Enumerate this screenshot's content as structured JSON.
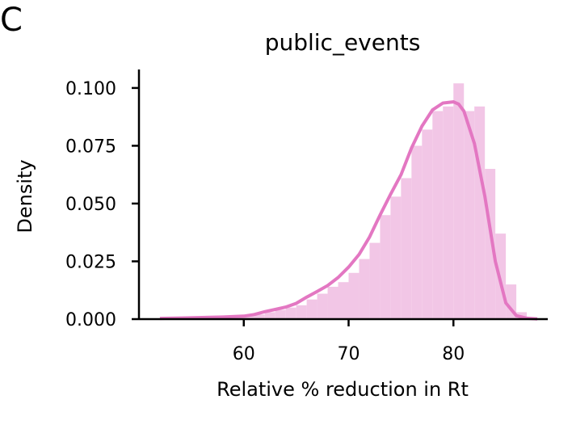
{
  "panel_label": "C",
  "chart_data": {
    "type": "histogram",
    "title": "public_events",
    "xlabel": "Relative % reduction in Rt",
    "ylabel": "Density",
    "xlim": [
      50,
      89
    ],
    "ylim": [
      0,
      0.108
    ],
    "xticks": [
      60,
      70,
      80
    ],
    "xtick_labels": [
      "60",
      "70",
      "80"
    ],
    "yticks": [
      0,
      0.025,
      0.05,
      0.075,
      0.1
    ],
    "ytick_labels": [
      "0.000",
      "0.025",
      "0.050",
      "0.075",
      "0.100"
    ],
    "grid": false,
    "colors": {
      "bars": "#f2c6e6",
      "kde": "#e377c2",
      "axes": "#000000"
    },
    "histogram": {
      "bins_left": [
        52,
        53,
        54,
        55,
        56,
        57,
        58,
        59,
        60,
        61,
        62,
        63,
        64,
        65,
        66,
        67,
        68,
        69,
        70,
        71,
        72,
        73,
        74,
        75,
        76,
        77,
        78,
        79,
        80,
        81,
        82,
        83,
        84,
        85,
        86
      ],
      "bin_width": 1,
      "density": [
        0.0003,
        0.0004,
        0.0005,
        0.0006,
        0.0007,
        0.0008,
        0.001,
        0.0012,
        0.0016,
        0.002,
        0.003,
        0.004,
        0.005,
        0.006,
        0.0085,
        0.011,
        0.014,
        0.016,
        0.02,
        0.026,
        0.033,
        0.045,
        0.053,
        0.061,
        0.075,
        0.082,
        0.09,
        0.092,
        0.102,
        0.09,
        0.092,
        0.065,
        0.037,
        0.015,
        0.003
      ]
    },
    "kde": {
      "x": [
        52,
        54,
        56,
        58,
        60,
        61,
        62,
        63,
        64,
        65,
        66,
        67,
        68,
        69,
        70,
        71,
        72,
        73,
        74,
        75,
        76,
        77,
        78,
        79,
        80,
        80.5,
        81,
        82,
        83,
        84,
        85,
        86,
        87,
        88
      ],
      "y": [
        0.0003,
        0.0005,
        0.0007,
        0.0009,
        0.0013,
        0.002,
        0.0032,
        0.0042,
        0.0052,
        0.0068,
        0.0095,
        0.012,
        0.0145,
        0.018,
        0.0225,
        0.028,
        0.0355,
        0.045,
        0.054,
        0.0625,
        0.074,
        0.0835,
        0.0905,
        0.0935,
        0.094,
        0.093,
        0.09,
        0.076,
        0.053,
        0.025,
        0.007,
        0.0015,
        0.0004,
        0.0001
      ]
    }
  }
}
